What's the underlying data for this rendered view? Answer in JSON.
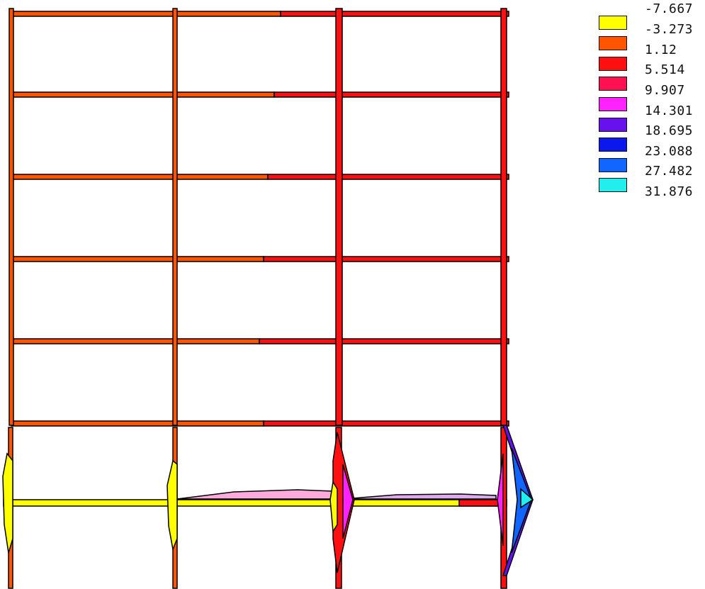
{
  "legend": {
    "values": [
      "-7.667",
      "-3.273",
      "1.12",
      "5.514",
      "9.907",
      "14.301",
      "18.695",
      "23.088",
      "27.482",
      "31.876"
    ],
    "colors": [
      "#ffff00",
      "#ff5500",
      "#ff1010",
      "#ff1050",
      "#ff22ff",
      "#6611ee",
      "#0a18ee",
      "#1166ff",
      "#22eeee"
    ]
  },
  "frame": {
    "stories": 6,
    "bays": 3,
    "colors": {
      "orange": "#ff5500",
      "red": "#ff1010",
      "yellow": "#ffff00",
      "outline": "#000000"
    }
  }
}
